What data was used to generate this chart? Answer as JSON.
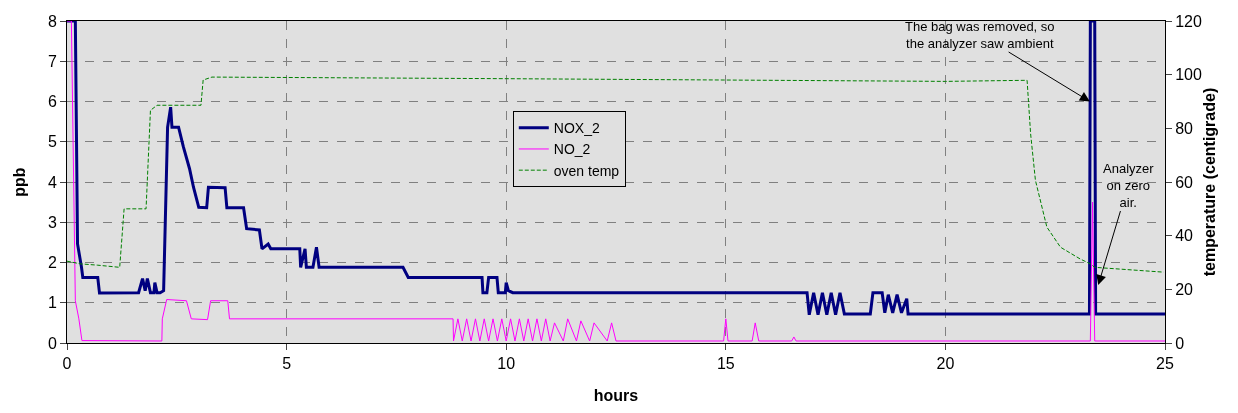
{
  "chart_data": {
    "type": "line",
    "xlabel": "hours",
    "ylabel": "ppb",
    "y2label": "temperature (centigrade)",
    "xlim": [
      0,
      25
    ],
    "xticks": [
      0,
      5,
      10,
      15,
      20,
      25
    ],
    "ylim": [
      0,
      8
    ],
    "yticks": [
      0,
      1,
      2,
      3,
      4,
      5,
      6,
      7,
      8
    ],
    "y2lim": [
      0,
      120
    ],
    "y2ticks": [
      0,
      20,
      40,
      60,
      80,
      100,
      120
    ],
    "grid": true,
    "legend": "top",
    "marker": "none",
    "annotations": [
      {
        "text": "The bag was removed, so the analyzer saw ambient",
        "x": 23.29,
        "y": 6
      },
      {
        "text": "Analyzer on zero air.",
        "x": 23.48,
        "y": 1.44
      }
    ],
    "series": [
      {
        "name": "NOX_2",
        "color": "#000080",
        "line_style": "solid",
        "x": [
          0,
          0.19,
          0.24,
          0.33,
          0.36,
          0.7,
          0.74,
          1.63,
          1.72,
          1.78,
          1.83,
          1.9,
          1.98,
          2.0,
          2.05,
          2.12,
          2.2,
          2.29,
          2.36,
          2.39,
          2.54,
          2.65,
          2.79,
          2.88,
          3.0,
          3.18,
          3.22,
          3.6,
          3.64,
          4.02,
          4.09,
          4.38,
          4.44,
          4.58,
          4.64,
          5.3,
          5.32,
          5.42,
          5.45,
          5.6,
          5.68,
          5.74,
          7.65,
          7.77,
          9.45,
          9.47,
          9.56,
          9.6,
          9.79,
          9.82,
          9.98,
          10.0,
          10.05,
          10.15,
          16.85,
          16.9,
          17.0,
          17.1,
          17.2,
          17.3,
          17.4,
          17.5,
          17.6,
          17.7,
          18.29,
          18.35,
          18.56,
          18.62,
          18.7,
          18.8,
          18.9,
          19.0,
          19.12,
          19.15,
          23.28,
          23.3,
          23.4,
          23.42,
          25
        ],
        "values": [
          8,
          8,
          2.46,
          1.88,
          1.63,
          1.63,
          1.24,
          1.25,
          1.6,
          1.3,
          1.6,
          1.25,
          1.25,
          1.5,
          1.25,
          1.25,
          1.3,
          5.36,
          5.86,
          5.36,
          5.36,
          4.87,
          4.33,
          3.87,
          3.37,
          3.36,
          3.87,
          3.86,
          3.36,
          3.36,
          2.84,
          2.81,
          2.34,
          2.46,
          2.34,
          2.34,
          1.88,
          2.34,
          1.88,
          1.88,
          2.38,
          1.88,
          1.88,
          1.63,
          1.63,
          1.25,
          1.25,
          1.63,
          1.63,
          1.25,
          1.25,
          1.5,
          1.3,
          1.25,
          1.25,
          0.7,
          1.25,
          0.7,
          1.25,
          0.7,
          1.25,
          0.7,
          1.25,
          0.72,
          0.72,
          1.25,
          1.25,
          0.75,
          1.2,
          0.75,
          1.2,
          0.75,
          1.1,
          0.72,
          0.72,
          8,
          8,
          0.72,
          0.72
        ]
      },
      {
        "name": "NO_2",
        "color": "#ff00ff",
        "line_style": "solid",
        "x": [
          0,
          0.1,
          0.19,
          0.27,
          0.34,
          2.16,
          2.17,
          2.27,
          2.72,
          2.83,
          3.2,
          3.27,
          3.66,
          3.7,
          8.79,
          8.8,
          8.9,
          9.0,
          9.1,
          9.2,
          9.3,
          9.4,
          9.5,
          9.6,
          9.7,
          9.8,
          9.9,
          10.0,
          10.1,
          10.2,
          10.3,
          10.4,
          10.5,
          10.6,
          10.7,
          10.8,
          10.9,
          11.0,
          11.1,
          11.3,
          11.4,
          11.6,
          11.7,
          11.9,
          12.0,
          12.3,
          12.4,
          12.5,
          14.95,
          15.0,
          15.05,
          15.6,
          15.67,
          15.75,
          16.5,
          16.55,
          16.6,
          23.3,
          23.35,
          23.4,
          25
        ],
        "values": [
          8,
          8,
          1.05,
          0.6,
          0.06,
          0.05,
          0.6,
          1.08,
          1.05,
          0.6,
          0.58,
          1.05,
          1.05,
          0.6,
          0.6,
          0.05,
          0.6,
          0.05,
          0.6,
          0.05,
          0.6,
          0.05,
          0.6,
          0.05,
          0.6,
          0.05,
          0.6,
          0.05,
          0.6,
          0.05,
          0.6,
          0.05,
          0.6,
          0.05,
          0.6,
          0.05,
          0.6,
          0.05,
          0.5,
          0.05,
          0.6,
          0.05,
          0.55,
          0.05,
          0.5,
          0.05,
          0.5,
          0.05,
          0.05,
          0.6,
          0.05,
          0.05,
          0.5,
          0.05,
          0.05,
          0.15,
          0.05,
          0.05,
          3.5,
          0.05,
          0.05
        ]
      },
      {
        "name": "oven temp",
        "color": "#008000",
        "line_style": "dashed",
        "axis": "y2",
        "x": [
          0,
          0.3,
          0.7,
          1.2,
          1.3,
          1.8,
          1.9,
          2.05,
          3.05,
          3.1,
          3.3,
          10,
          15,
          20,
          21.86,
          21.94,
          22.05,
          22.31,
          22.62,
          23.07,
          23.3,
          23.4,
          24.97
        ],
        "values": [
          30.5,
          29.5,
          29,
          28.2,
          50,
          50,
          86.7,
          88.6,
          88.6,
          98,
          99.1,
          98.5,
          98,
          97.5,
          97.9,
          78,
          60.6,
          43.2,
          35.7,
          31.3,
          29.5,
          28.2,
          26.4
        ]
      }
    ]
  }
}
